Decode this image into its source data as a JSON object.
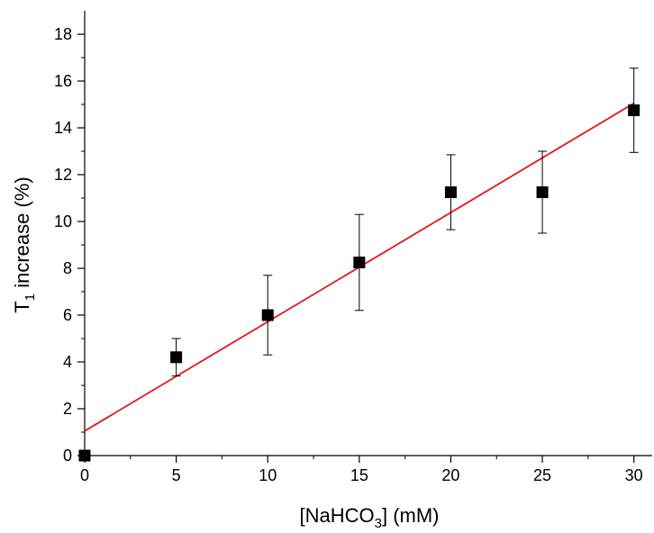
{
  "chart_data": {
    "type": "scatter",
    "title": "",
    "xlabel": {
      "main": "[NaHCO",
      "sub": "3",
      "tail": "] (mM)"
    },
    "ylabel": {
      "main": "T",
      "sub": "1",
      "tail": " increase (%)"
    },
    "xlim": [
      0,
      31
    ],
    "ylim": [
      0,
      19
    ],
    "x_ticks": [
      0,
      5,
      10,
      15,
      20,
      25,
      30
    ],
    "x_minor_ticks": [
      2.5,
      7.5,
      12.5,
      17.5,
      22.5,
      27.5
    ],
    "y_ticks": [
      0,
      2,
      4,
      6,
      8,
      10,
      12,
      14,
      16,
      18
    ],
    "y_minor_ticks": [
      1,
      3,
      5,
      7,
      9,
      11,
      13,
      15,
      17
    ],
    "grid": false,
    "legend": "none",
    "series": [
      {
        "marker": "square",
        "color": "#000000",
        "points": [
          {
            "x": 0,
            "y": 0.0,
            "err": 0.0
          },
          {
            "x": 5,
            "y": 4.2,
            "err": 0.8
          },
          {
            "x": 10,
            "y": 6.0,
            "err": 1.7
          },
          {
            "x": 15,
            "y": 8.25,
            "err": 2.05
          },
          {
            "x": 20,
            "y": 11.25,
            "err": 1.6
          },
          {
            "x": 25,
            "y": 11.25,
            "err": 1.75
          },
          {
            "x": 30,
            "y": 14.75,
            "err": 1.8
          }
        ]
      }
    ],
    "fit_line": {
      "color": "#e8141c",
      "x": [
        0,
        30
      ],
      "y": [
        1.05,
        15.05
      ]
    }
  }
}
